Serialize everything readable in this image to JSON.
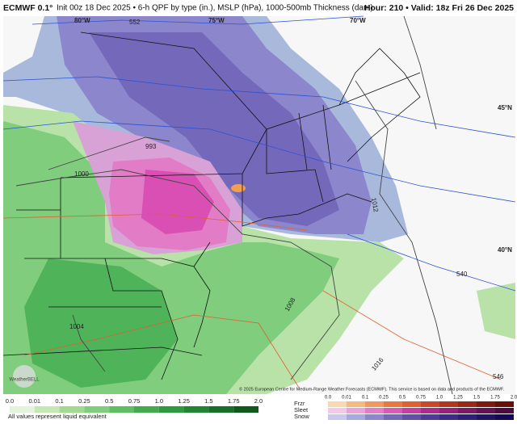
{
  "header": {
    "model": "ECMWF 0.1°",
    "title": "Init 00z 18 Dec 2025 • 6-h QPF by type (in.), MSLP (hPa), 1000-500mb Thickness (dam)",
    "valid": "Hour: 210 • Valid: 18z Fri 26 Dec 2025"
  },
  "map": {
    "lon_labels": [
      "80°W",
      "75°W",
      "70°W"
    ],
    "lat_labels": [
      "45°N",
      "40°N"
    ],
    "isobar_labels": [
      "993",
      "1000",
      "1004",
      "1008",
      "1012",
      "1016"
    ],
    "thickness_labels": [
      "552",
      "546",
      "540"
    ],
    "credit": "© 2025 European Centre for Medium-Range Weather Forecasts (ECMWF). This service is based on data and products of the ECMWF.",
    "logo": "WeatherBELL"
  },
  "legend": {
    "rain_ticks": [
      "0.0",
      "0.01",
      "0.1",
      "0.25",
      "0.5",
      "0.75",
      "1.0",
      "1.25",
      "1.5",
      "1.75",
      "2.0"
    ],
    "note": "All values represent liquid equivalent",
    "types": [
      "Frzr",
      "Sleet",
      "Snow"
    ],
    "mixed_ticks": [
      "0.0",
      "0.01",
      "0.1",
      "0.25",
      "0.5",
      "0.75",
      "1.0",
      "1.25",
      "1.5",
      "1.75",
      "2.0"
    ]
  }
}
